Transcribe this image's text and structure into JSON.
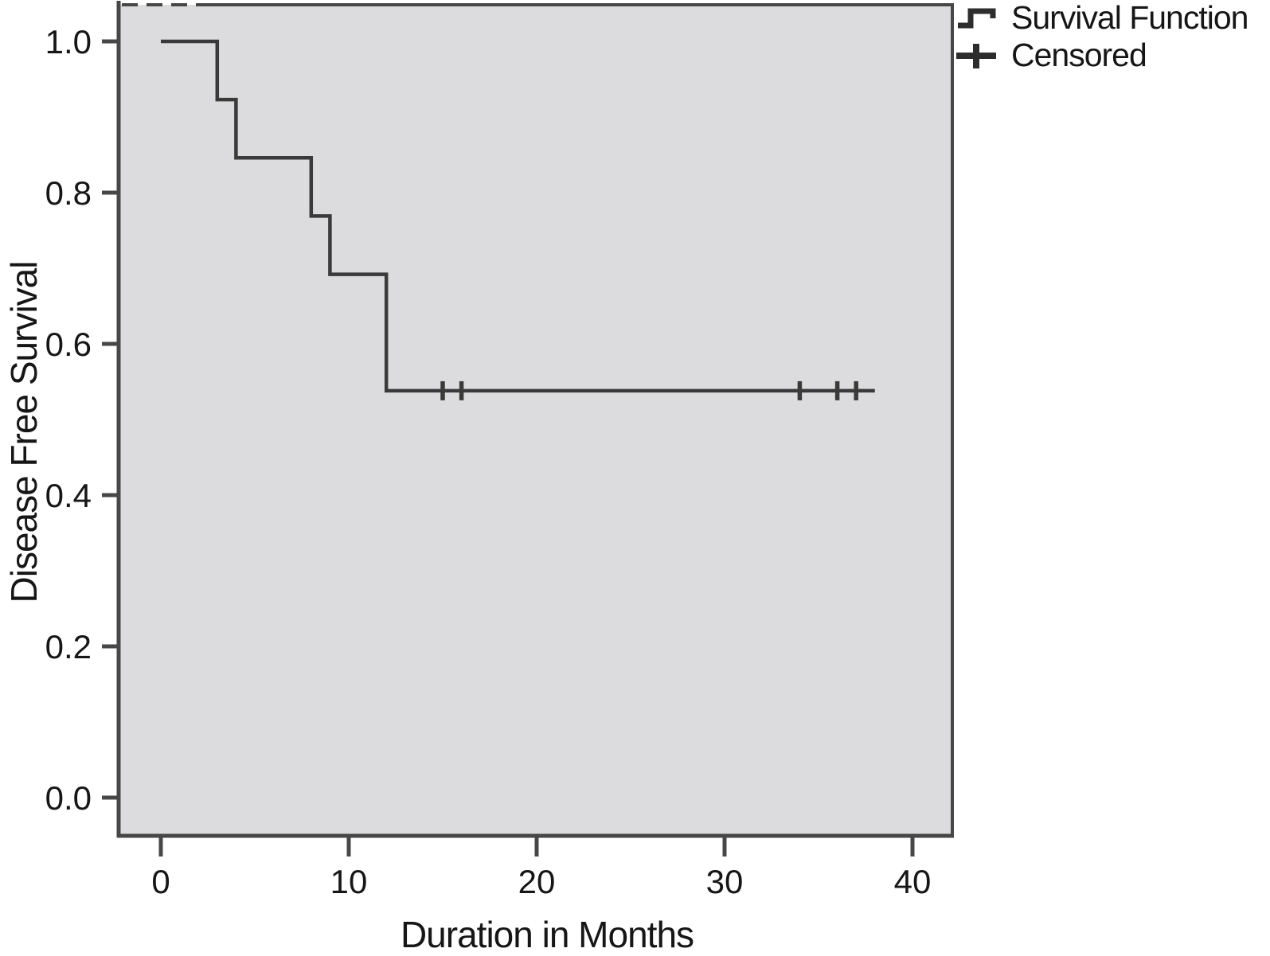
{
  "chart_data": {
    "type": "line",
    "subtype": "kaplan_meier_step",
    "title": "",
    "xlabel": "Duration in Months",
    "ylabel": "Disease Free Survival",
    "grid": false,
    "legend_position": "top-right-outside",
    "xlim": [
      -2.2,
      42.1
    ],
    "ylim": [
      -0.053,
      1.05
    ],
    "x_ticks": [
      {
        "label": "0",
        "value": 0
      },
      {
        "label": "10",
        "value": 10
      },
      {
        "label": "20",
        "value": 20
      },
      {
        "label": "30",
        "value": 30
      },
      {
        "label": "40",
        "value": 40
      }
    ],
    "y_ticks": [
      {
        "label": "1.0",
        "value": 1.0
      },
      {
        "label": "0.8",
        "value": 0.8
      },
      {
        "label": "0.6",
        "value": 0.6
      },
      {
        "label": "0.4",
        "value": 0.4
      },
      {
        "label": "0.2",
        "value": 0.2
      },
      {
        "label": "0.0",
        "value": 0.0
      }
    ],
    "series": [
      {
        "name": "Survival Function",
        "style": "step-post",
        "points": [
          [
            0,
            1.0
          ],
          [
            3,
            0.923
          ],
          [
            4,
            0.846
          ],
          [
            8,
            0.769
          ],
          [
            9,
            0.692
          ],
          [
            12,
            0.538
          ],
          [
            38,
            0.538
          ]
        ]
      }
    ],
    "censored": {
      "name": "Censored",
      "marker": "plus-tick",
      "points": [
        [
          15,
          0.538
        ],
        [
          16,
          0.538
        ],
        [
          34,
          0.538
        ],
        [
          36,
          0.538
        ],
        [
          37,
          0.538
        ]
      ]
    },
    "legend": [
      {
        "label": "Survival Function",
        "symbol": "step-line"
      },
      {
        "label": "Censored",
        "symbol": "plus-tick"
      }
    ],
    "colors": {
      "curve": "#3a3a3a",
      "censored_mark": "#3a3a3a",
      "legend_glyph": "#2d2d2d",
      "plot_background": "#dcdcde",
      "outer_background": "#ffffff",
      "border": "#474747",
      "text": "#161616"
    }
  }
}
